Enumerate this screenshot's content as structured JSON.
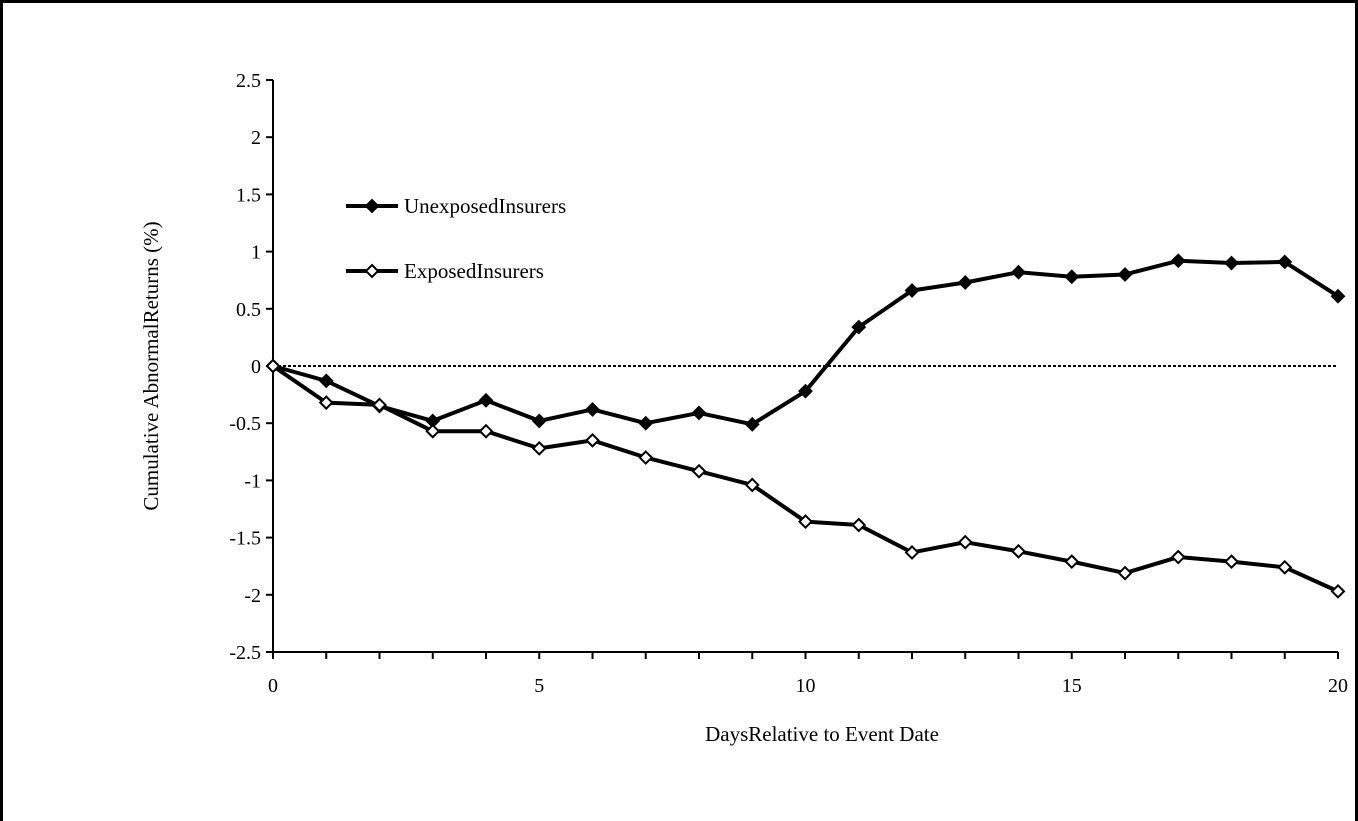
{
  "chart_data": {
    "type": "line",
    "xlabel": "DaysRelative to Event Date",
    "ylabel": "Cumulative AbnormalReturns (%)",
    "xlim": [
      0,
      20
    ],
    "ylim": [
      -2.5,
      2.5
    ],
    "xticks": [
      0,
      5,
      10,
      15,
      20
    ],
    "yticks": [
      2.5,
      2,
      1.5,
      1,
      0.5,
      0,
      -0.5,
      -1,
      -1.5,
      -2,
      -2.5
    ],
    "ytick_labels": [
      "2.5",
      "2",
      "1.5",
      "1",
      "0.5",
      "0",
      "-0.5",
      "-1",
      "-1.5",
      "-2",
      "-2.5"
    ],
    "xtick_labels": [
      "0",
      "5",
      "10",
      "15",
      "20"
    ],
    "reference_line": {
      "y": 0,
      "style": "dotted"
    },
    "grid": false,
    "legend_position": "upper-left",
    "x": [
      0,
      1,
      2,
      3,
      4,
      5,
      6,
      7,
      8,
      9,
      10,
      11,
      12,
      13,
      14,
      15,
      16,
      17,
      18,
      19,
      20
    ],
    "series": [
      {
        "name": "UnexposedInsurers",
        "marker": "filled-diamond",
        "color": "#000000",
        "values": [
          0,
          -0.13,
          -0.35,
          -0.48,
          -0.3,
          -0.48,
          -0.38,
          -0.5,
          -0.41,
          -0.51,
          -0.22,
          0.34,
          0.66,
          0.73,
          0.82,
          0.78,
          0.8,
          0.92,
          0.9,
          0.91,
          0.61
        ]
      },
      {
        "name": "ExposedInsurers",
        "marker": "open-diamond",
        "color": "#000000",
        "values": [
          0,
          -0.32,
          -0.34,
          -0.57,
          -0.57,
          -0.72,
          -0.65,
          -0.8,
          -0.92,
          -1.04,
          -1.36,
          -1.39,
          -1.63,
          -1.54,
          -1.62,
          -1.71,
          -1.81,
          -1.67,
          -1.71,
          -1.76,
          -1.97
        ]
      }
    ]
  }
}
